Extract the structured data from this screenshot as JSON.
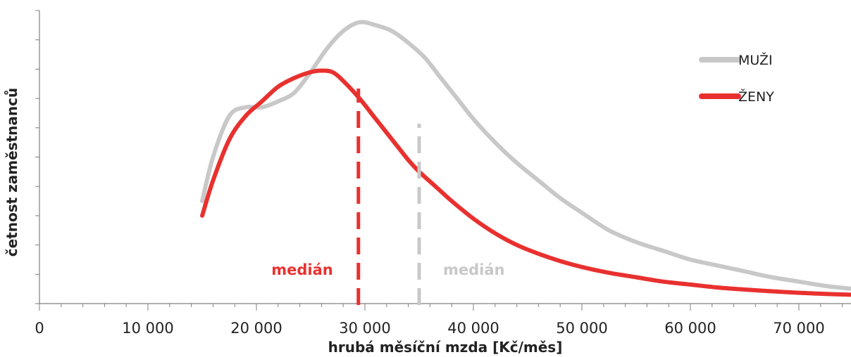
{
  "chart_data": {
    "type": "line",
    "xlabel": "hrubá měsíční mzda [Kč/měs]",
    "ylabel": "četnost zaměstnanců",
    "xlim": [
      0,
      75000
    ],
    "ylim": [
      0,
      100
    ],
    "x_tick_labels": [
      "0",
      "10 000",
      "20 000",
      "30 000",
      "40 000",
      "50 000",
      "60 000",
      "70 000"
    ],
    "x_tick_values": [
      0,
      10000,
      20000,
      30000,
      40000,
      50000,
      60000,
      70000
    ],
    "y_tick_labels_visible": false,
    "grid": false,
    "legend_position": "top-right",
    "series": [
      {
        "name": "MUŽI",
        "color": "#c8c8c8",
        "x": [
          15000,
          16000,
          17500,
          19000,
          20500,
          22000,
          23500,
          25000,
          26500,
          28000,
          29500,
          31000,
          32500,
          34000,
          35500,
          37000,
          38500,
          40000,
          42000,
          44000,
          46000,
          48000,
          50000,
          52500,
          55000,
          57500,
          60000,
          62500,
          65000,
          67500,
          70000,
          72500,
          75000
        ],
        "y": [
          35,
          50,
          64,
          67,
          67,
          69,
          72,
          79,
          87,
          93,
          96,
          95,
          93,
          89,
          84,
          77,
          70,
          63,
          55,
          48,
          42,
          36,
          31,
          25,
          21,
          18,
          15,
          13,
          11,
          9,
          7.5,
          6,
          5
        ]
      },
      {
        "name": "ŽENY",
        "color": "#e8312f",
        "x": [
          15000,
          16000,
          17500,
          19000,
          20500,
          22000,
          23500,
          25000,
          26000,
          27000,
          28000,
          29500,
          31000,
          32500,
          34000,
          35000,
          36500,
          38000,
          40000,
          42000,
          44000,
          46000,
          48000,
          50000,
          52500,
          55000,
          57500,
          60000,
          62500,
          65000,
          67500,
          70000,
          72500,
          75000
        ],
        "y": [
          30,
          42,
          56,
          64,
          69,
          74,
          77,
          79,
          79.5,
          79,
          76,
          70,
          63,
          56,
          49,
          45,
          40,
          35,
          29,
          24,
          20,
          17,
          14.5,
          12.5,
          10.5,
          9,
          7.5,
          6.5,
          5.5,
          4.8,
          4.2,
          3.7,
          3.3,
          3
        ]
      }
    ],
    "medians": [
      {
        "label": "medián",
        "x": 29400,
        "series": "ŽENY",
        "color": "#e8312f"
      },
      {
        "label": "medián",
        "x": 35000,
        "series": "MUŽI",
        "color": "#c8c8c8"
      }
    ]
  }
}
